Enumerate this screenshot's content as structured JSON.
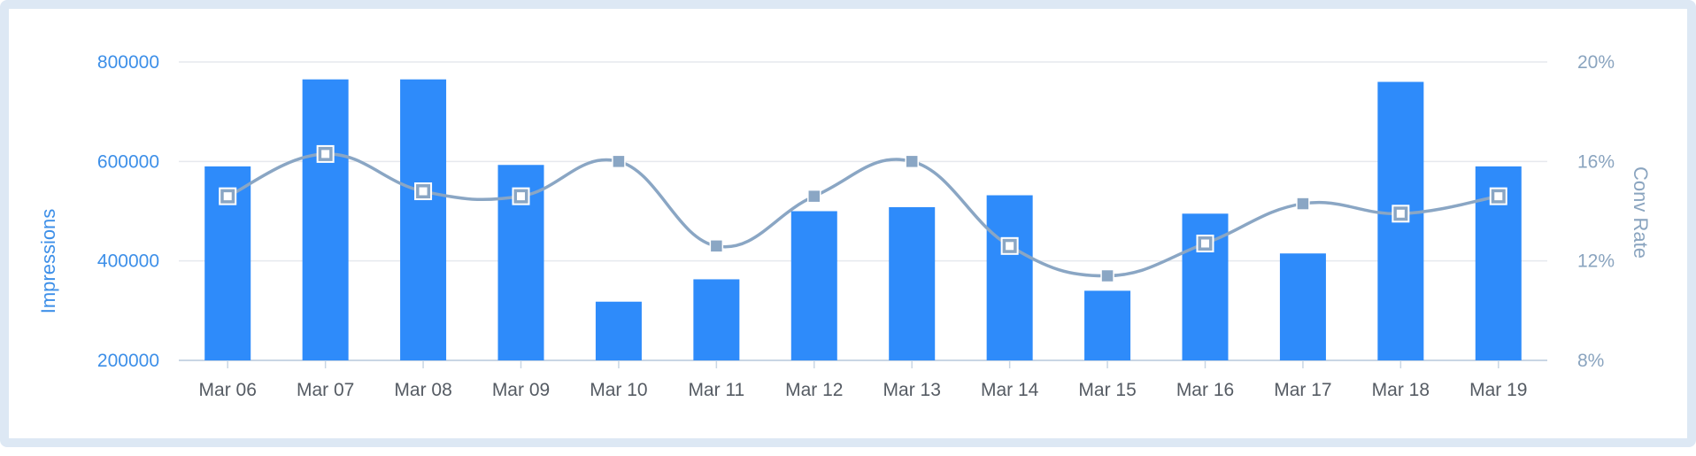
{
  "chart_data": {
    "type": "bar",
    "categories": [
      "Mar 06",
      "Mar 07",
      "Mar 08",
      "Mar 09",
      "Mar 10",
      "Mar 11",
      "Mar 12",
      "Mar 13",
      "Mar 14",
      "Mar 15",
      "Mar 16",
      "Mar 17",
      "Mar 18",
      "Mar 19"
    ],
    "series": [
      {
        "name": "Impressions",
        "type": "bar",
        "axis": "left",
        "values": [
          590000,
          765000,
          765000,
          593000,
          318000,
          363000,
          500000,
          508000,
          532000,
          340000,
          495000,
          415000,
          760000,
          590000
        ]
      },
      {
        "name": "Conv Rate",
        "type": "line",
        "axis": "right",
        "unit": "%",
        "values": [
          14.6,
          16.3,
          14.8,
          14.6,
          16.0,
          12.6,
          14.6,
          16.0,
          12.6,
          11.4,
          12.7,
          14.3,
          13.9,
          14.6
        ],
        "hollow_markers": [
          true,
          true,
          true,
          true,
          false,
          false,
          false,
          false,
          true,
          false,
          true,
          false,
          true,
          true
        ]
      }
    ],
    "ylabel": "Impressions",
    "ylabel_right": "Conv Rate",
    "ylim": [
      200000,
      800000
    ],
    "yticks": [
      "200000",
      "400000",
      "600000",
      "800000"
    ],
    "ylim_right": [
      8,
      20
    ],
    "yticks_right": [
      "8%",
      "12%",
      "16%",
      "20%"
    ],
    "grid": true,
    "legend": "none",
    "colors": {
      "bars": "#2e8bfa",
      "line": "#8aa6c4",
      "left_axis": "#3d8fe8",
      "right_axis": "#8aa4bf",
      "grid": "#e6e9ee",
      "frame": "#dde8f4"
    }
  }
}
